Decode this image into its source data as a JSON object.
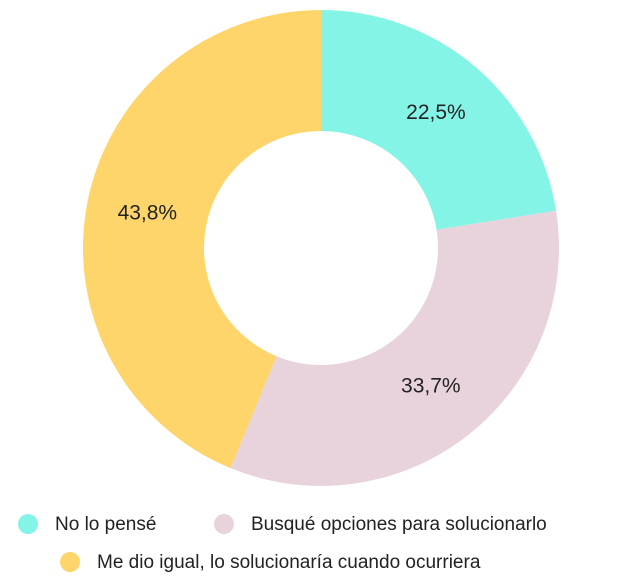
{
  "chart_data": {
    "type": "pie",
    "categories": [
      "No lo pensé",
      "Busqué opciones para solucionarlo",
      "Me dio igual, lo solucionaría cuando ocurriera"
    ],
    "values": [
      22.5,
      33.7,
      43.8
    ],
    "value_labels": [
      "22,5%",
      "33,7%",
      "43,8%"
    ],
    "colors": [
      "#84f4e6",
      "#e8d3dc",
      "#fdd56b"
    ]
  }
}
